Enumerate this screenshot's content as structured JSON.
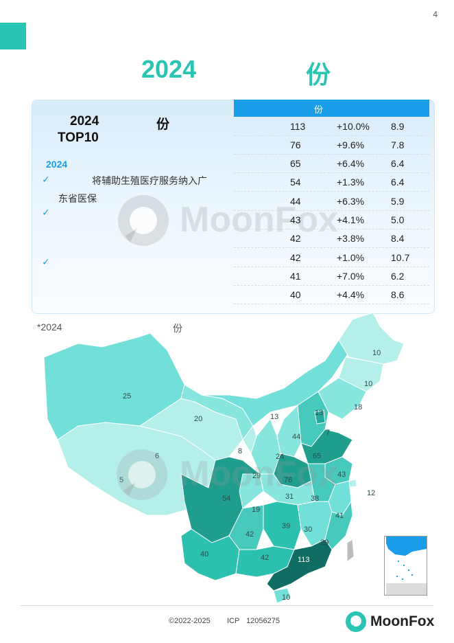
{
  "page_number": "4",
  "title": {
    "year": "2024",
    "unit": "份"
  },
  "left": {
    "year": "2024",
    "unit": "份",
    "top": "TOP10",
    "note_year": "2024",
    "note1_line1": "将辅助生殖医疗服务纳入广",
    "note1_line2": "东省医保"
  },
  "table": {
    "header": "份",
    "rows": [
      {
        "v": "113",
        "g": "+10.0%",
        "r": "8.9"
      },
      {
        "v": "76",
        "g": "+9.6%",
        "r": "7.8"
      },
      {
        "v": "65",
        "g": "+6.4%",
        "r": "6.4"
      },
      {
        "v": "54",
        "g": "+1.3%",
        "r": "6.4"
      },
      {
        "v": "44",
        "g": "+6.3%",
        "r": "5.9"
      },
      {
        "v": "43",
        "g": "+4.1%",
        "r": "5.0"
      },
      {
        "v": "42",
        "g": "+3.8%",
        "r": "8.4"
      },
      {
        "v": "42",
        "g": "+1.0%",
        "r": "10.7"
      },
      {
        "v": "41",
        "g": "+7.0%",
        "r": "6.2"
      },
      {
        "v": "40",
        "g": "+4.4%",
        "r": "8.6"
      }
    ]
  },
  "map": {
    "note": "*2024",
    "note_unit": "份",
    "labels": [
      "25",
      "20",
      "13",
      "13",
      "10",
      "10",
      "18",
      "7",
      "44",
      "65",
      "8",
      "24",
      "6",
      "29",
      "76",
      "43",
      "5",
      "54",
      "31",
      "38",
      "19",
      "12",
      "41",
      "39",
      "30",
      "42",
      "29",
      "40",
      "42",
      "113",
      "10"
    ]
  },
  "footer": {
    "copyright": "©2022-2025",
    "icp": "ICP",
    "icp_number": "12056275",
    "brand": "MoonFox"
  },
  "watermark": "MoonFox",
  "colors": {
    "teal": "#2ac4b3",
    "blue": "#1a9de8",
    "dark_teal": "#0f6d63"
  }
}
